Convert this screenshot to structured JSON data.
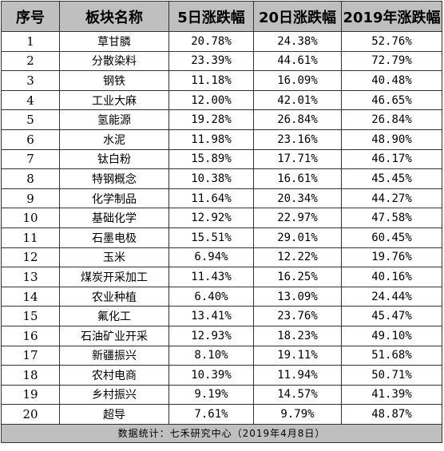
{
  "table": {
    "headers": [
      "序号",
      "板块名称",
      "5日涨跌幅",
      "20日涨跌幅",
      "2019年涨跌幅"
    ],
    "rows": [
      {
        "seq": "1",
        "name": "草甘膦",
        "d5": "20.78%",
        "d20": "24.38%",
        "y2019": "52.76%"
      },
      {
        "seq": "2",
        "name": "分散染料",
        "d5": "23.39%",
        "d20": "44.61%",
        "y2019": "72.79%"
      },
      {
        "seq": "3",
        "name": "钢铁",
        "d5": "11.18%",
        "d20": "16.09%",
        "y2019": "40.48%"
      },
      {
        "seq": "4",
        "name": "工业大麻",
        "d5": "12.00%",
        "d20": "42.01%",
        "y2019": "46.65%"
      },
      {
        "seq": "5",
        "name": "氢能源",
        "d5": "19.28%",
        "d20": "26.84%",
        "y2019": "26.84%"
      },
      {
        "seq": "6",
        "name": "水泥",
        "d5": "11.98%",
        "d20": "23.16%",
        "y2019": "48.90%"
      },
      {
        "seq": "7",
        "name": "钛白粉",
        "d5": "15.89%",
        "d20": "17.71%",
        "y2019": "46.17%"
      },
      {
        "seq": "8",
        "name": "特钢概念",
        "d5": "10.38%",
        "d20": "16.61%",
        "y2019": "45.45%"
      },
      {
        "seq": "9",
        "name": "化学制品",
        "d5": "11.64%",
        "d20": "20.34%",
        "y2019": "44.27%"
      },
      {
        "seq": "10",
        "name": "基础化学",
        "d5": "12.92%",
        "d20": "22.97%",
        "y2019": "47.58%"
      },
      {
        "seq": "11",
        "name": "石墨电极",
        "d5": "15.51%",
        "d20": "29.01%",
        "y2019": "60.45%"
      },
      {
        "seq": "12",
        "name": "玉米",
        "d5": "6.94%",
        "d20": "12.22%",
        "y2019": "19.76%"
      },
      {
        "seq": "13",
        "name": "煤炭开采加工",
        "d5": "11.43%",
        "d20": "16.25%",
        "y2019": "40.16%"
      },
      {
        "seq": "14",
        "name": "农业种植",
        "d5": "6.40%",
        "d20": "13.09%",
        "y2019": "24.44%"
      },
      {
        "seq": "15",
        "name": "氟化工",
        "d5": "13.41%",
        "d20": "23.76%",
        "y2019": "45.47%"
      },
      {
        "seq": "16",
        "name": "石油矿业开采",
        "d5": "12.93%",
        "d20": "18.23%",
        "y2019": "49.10%"
      },
      {
        "seq": "17",
        "name": "新疆振兴",
        "d5": "8.10%",
        "d20": "19.11%",
        "y2019": "51.68%"
      },
      {
        "seq": "18",
        "name": "农村电商",
        "d5": "10.39%",
        "d20": "11.94%",
        "y2019": "50.71%"
      },
      {
        "seq": "19",
        "name": "乡村振兴",
        "d5": "9.19%",
        "d20": "14.57%",
        "y2019": "41.39%"
      },
      {
        "seq": "20",
        "name": "超导",
        "d5": "7.61%",
        "d20": "9.79%",
        "y2019": "48.87%"
      }
    ],
    "footer": "数据统计：七禾研究中心（2019年4月8日）"
  },
  "colors": {
    "header_bg": "#bfbfbf",
    "footer_bg": "#bfbfbf",
    "border": "#333333"
  }
}
